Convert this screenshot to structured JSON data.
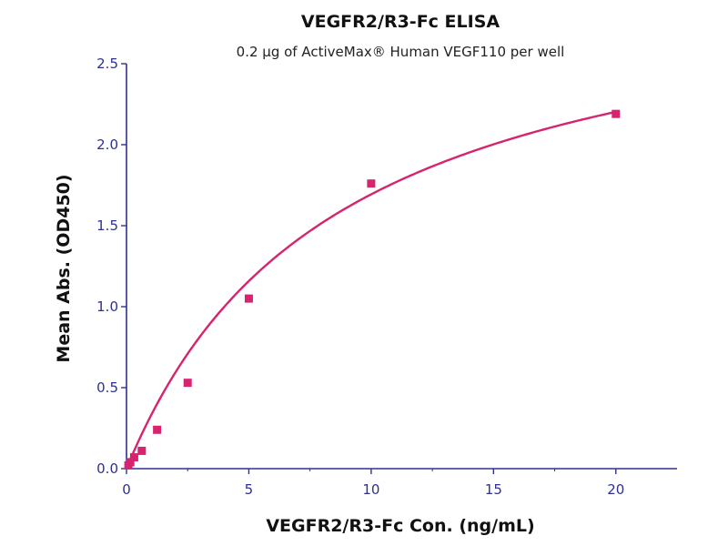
{
  "chart_data": {
    "type": "scatter",
    "title": "VEGFR2/R3-Fc ELISA",
    "subtitle": "0.2 µg of ActiveMax® Human VEGF110 per well",
    "xlabel": "VEGFR2/R3-Fc Con. (ng/mL)",
    "ylabel": "Mean Abs. (OD450)",
    "xlim": [
      0,
      22.5
    ],
    "ylim": [
      0,
      2.5
    ],
    "x_ticks": [
      0,
      5,
      10,
      15,
      20
    ],
    "y_ticks": [
      0.0,
      0.5,
      1.0,
      1.5,
      2.0,
      2.5
    ],
    "x_tick_labels": [
      "0",
      "5",
      "10",
      "15",
      "20"
    ],
    "y_tick_labels": [
      "0.0",
      "0.5",
      "1.0",
      "1.5",
      "2.0",
      "2.5"
    ],
    "grid": false,
    "legend": "none",
    "series": [
      {
        "marker": "square",
        "color": "#d6246e",
        "x": [
          0.078,
          0.156,
          0.313,
          0.625,
          1.25,
          2.5,
          5,
          10,
          20
        ],
        "y": [
          0.02,
          0.04,
          0.07,
          0.11,
          0.24,
          0.53,
          1.05,
          1.76,
          2.19
        ]
      }
    ],
    "fit_curve": {
      "type": "hyperbolic",
      "color": "#d6246e",
      "bmax": 3.15,
      "kd": 8.6,
      "x_range": [
        0,
        20
      ]
    },
    "axis_color": "#2e3192"
  }
}
